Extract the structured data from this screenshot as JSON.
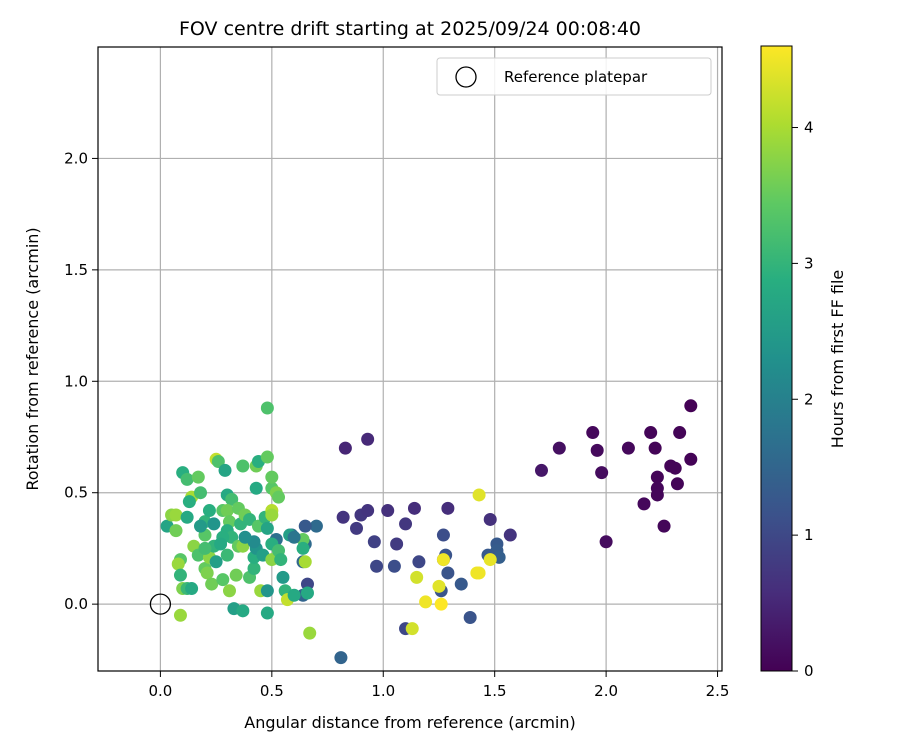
{
  "chart_data": {
    "type": "scatter",
    "title": "FOV centre drift starting at 2025/09/24 00:08:40",
    "xlabel": "Angular distance from reference (arcmin)",
    "ylabel": "Rotation from reference (arcmin)",
    "xlim": [
      -0.28,
      2.52
    ],
    "ylim": [
      -0.3,
      2.5
    ],
    "xticks": [
      0.0,
      0.5,
      1.0,
      1.5,
      2.0,
      2.5
    ],
    "xtick_labels": [
      "0.0",
      "0.5",
      "1.0",
      "1.5",
      "2.0",
      "2.5"
    ],
    "yticks": [
      0.0,
      0.5,
      1.0,
      1.5,
      2.0
    ],
    "ytick_labels": [
      "0.0",
      "0.5",
      "1.0",
      "1.5",
      "2.0"
    ],
    "grid": true,
    "legend": {
      "position": "top-right",
      "entries": [
        {
          "label": "Reference platepar",
          "marker": "open-circle"
        }
      ]
    },
    "reference": {
      "x": 0.0,
      "y": 0.0
    },
    "colorbar": {
      "label": "Hours from first FF file",
      "colormap": "viridis",
      "range": [
        0,
        4.6
      ],
      "ticks": [
        0,
        1,
        2,
        3,
        4
      ],
      "tick_labels": [
        "0",
        "1",
        "2",
        "3",
        "4"
      ]
    },
    "points": [
      {
        "x": 2.38,
        "y": 0.89,
        "t": 0.02
      },
      {
        "x": 2.33,
        "y": 0.77,
        "t": 0.05
      },
      {
        "x": 2.2,
        "y": 0.77,
        "t": 0.06
      },
      {
        "x": 1.94,
        "y": 0.77,
        "t": 0.1
      },
      {
        "x": 1.79,
        "y": 0.7,
        "t": 0.2
      },
      {
        "x": 1.71,
        "y": 0.6,
        "t": 0.3
      },
      {
        "x": 1.96,
        "y": 0.69,
        "t": 0.12
      },
      {
        "x": 1.98,
        "y": 0.59,
        "t": 0.15
      },
      {
        "x": 2.1,
        "y": 0.7,
        "t": 0.1
      },
      {
        "x": 2.22,
        "y": 0.7,
        "t": 0.05
      },
      {
        "x": 2.23,
        "y": 0.57,
        "t": 0.06
      },
      {
        "x": 2.23,
        "y": 0.52,
        "t": 0.07
      },
      {
        "x": 2.23,
        "y": 0.49,
        "t": 0.08
      },
      {
        "x": 2.17,
        "y": 0.45,
        "t": 0.1
      },
      {
        "x": 2.29,
        "y": 0.62,
        "t": 0.04
      },
      {
        "x": 2.31,
        "y": 0.61,
        "t": 0.05
      },
      {
        "x": 2.38,
        "y": 0.65,
        "t": 0.03
      },
      {
        "x": 2.32,
        "y": 0.54,
        "t": 0.05
      },
      {
        "x": 2.26,
        "y": 0.35,
        "t": 0.08
      },
      {
        "x": 2.0,
        "y": 0.28,
        "t": 0.15
      },
      {
        "x": 0.83,
        "y": 0.7,
        "t": 0.5
      },
      {
        "x": 0.93,
        "y": 0.74,
        "t": 0.55
      },
      {
        "x": 0.82,
        "y": 0.39,
        "t": 0.7
      },
      {
        "x": 0.88,
        "y": 0.34,
        "t": 0.8
      },
      {
        "x": 0.9,
        "y": 0.4,
        "t": 0.75
      },
      {
        "x": 0.93,
        "y": 0.42,
        "t": 0.7
      },
      {
        "x": 1.02,
        "y": 0.42,
        "t": 0.65
      },
      {
        "x": 1.14,
        "y": 0.43,
        "t": 0.6
      },
      {
        "x": 1.29,
        "y": 0.43,
        "t": 0.6
      },
      {
        "x": 1.48,
        "y": 0.38,
        "t": 0.65
      },
      {
        "x": 1.57,
        "y": 0.31,
        "t": 0.7
      },
      {
        "x": 1.1,
        "y": 0.36,
        "t": 0.75
      },
      {
        "x": 1.06,
        "y": 0.27,
        "t": 0.8
      },
      {
        "x": 0.96,
        "y": 0.28,
        "t": 0.9
      },
      {
        "x": 1.16,
        "y": 0.19,
        "t": 1.0
      },
      {
        "x": 1.27,
        "y": 0.31,
        "t": 1.1
      },
      {
        "x": 1.28,
        "y": 0.22,
        "t": 1.2
      },
      {
        "x": 1.27,
        "y": 0.2,
        "t": 1.15
      },
      {
        "x": 1.51,
        "y": 0.27,
        "t": 1.3
      },
      {
        "x": 1.51,
        "y": 0.24,
        "t": 1.35
      },
      {
        "x": 1.52,
        "y": 0.21,
        "t": 1.4
      },
      {
        "x": 1.47,
        "y": 0.22,
        "t": 1.3
      },
      {
        "x": 1.35,
        "y": 0.09,
        "t": 1.3
      },
      {
        "x": 1.29,
        "y": 0.14,
        "t": 1.2
      },
      {
        "x": 1.26,
        "y": 0.06,
        "t": 1.2
      },
      {
        "x": 1.05,
        "y": 0.17,
        "t": 1.1
      },
      {
        "x": 0.97,
        "y": 0.17,
        "t": 1.0
      },
      {
        "x": 1.1,
        "y": -0.11,
        "t": 1.0
      },
      {
        "x": 1.39,
        "y": -0.06,
        "t": 1.2
      },
      {
        "x": 0.81,
        "y": -0.24,
        "t": 1.5
      },
      {
        "x": 0.7,
        "y": 0.35,
        "t": 1.6
      },
      {
        "x": 0.65,
        "y": 0.35,
        "t": 1.3
      },
      {
        "x": 0.65,
        "y": 0.27,
        "t": 1.6
      },
      {
        "x": 0.59,
        "y": 0.31,
        "t": 1.65
      },
      {
        "x": 0.52,
        "y": 0.29,
        "t": 1.7
      },
      {
        "x": 0.66,
        "y": 0.09,
        "t": 1.0
      },
      {
        "x": 0.64,
        "y": 0.19,
        "t": 1.55
      },
      {
        "x": 0.64,
        "y": 0.04,
        "t": 1.5
      },
      {
        "x": 1.42,
        "y": 0.14,
        "t": 4.5
      },
      {
        "x": 1.43,
        "y": 0.49,
        "t": 4.4
      },
      {
        "x": 1.48,
        "y": 0.2,
        "t": 4.45
      },
      {
        "x": 1.43,
        "y": 0.14,
        "t": 4.5
      },
      {
        "x": 1.27,
        "y": 0.2,
        "t": 4.5
      },
      {
        "x": 1.15,
        "y": 0.12,
        "t": 4.3
      },
      {
        "x": 1.19,
        "y": 0.01,
        "t": 4.5
      },
      {
        "x": 1.25,
        "y": 0.08,
        "t": 4.4
      },
      {
        "x": 1.26,
        "y": 0.0,
        "t": 4.6
      },
      {
        "x": 1.13,
        "y": -0.11,
        "t": 4.3
      },
      {
        "x": 0.03,
        "y": 0.35,
        "t": 2.7
      },
      {
        "x": 0.05,
        "y": 0.4,
        "t": 3.8
      },
      {
        "x": 0.07,
        "y": 0.4,
        "t": 3.9
      },
      {
        "x": 0.07,
        "y": 0.33,
        "t": 3.6
      },
      {
        "x": 0.09,
        "y": 0.2,
        "t": 3.4
      },
      {
        "x": 0.08,
        "y": 0.18,
        "t": 3.9
      },
      {
        "x": 0.09,
        "y": 0.13,
        "t": 3.0
      },
      {
        "x": 0.09,
        "y": -0.05,
        "t": 3.9
      },
      {
        "x": 0.1,
        "y": 0.07,
        "t": 3.7
      },
      {
        "x": 0.12,
        "y": 0.07,
        "t": 3.1
      },
      {
        "x": 0.14,
        "y": 0.07,
        "t": 2.8
      },
      {
        "x": 0.1,
        "y": 0.59,
        "t": 2.9
      },
      {
        "x": 0.12,
        "y": 0.56,
        "t": 3.2
      },
      {
        "x": 0.17,
        "y": 0.57,
        "t": 3.5
      },
      {
        "x": 0.14,
        "y": 0.48,
        "t": 4.0
      },
      {
        "x": 0.13,
        "y": 0.46,
        "t": 2.9
      },
      {
        "x": 0.12,
        "y": 0.39,
        "t": 2.8
      },
      {
        "x": 0.18,
        "y": 0.5,
        "t": 3.2
      },
      {
        "x": 0.15,
        "y": 0.26,
        "t": 3.8
      },
      {
        "x": 0.17,
        "y": 0.22,
        "t": 3.3
      },
      {
        "x": 0.2,
        "y": 0.31,
        "t": 3.4
      },
      {
        "x": 0.2,
        "y": 0.37,
        "t": 3.0
      },
      {
        "x": 0.22,
        "y": 0.42,
        "t": 2.9
      },
      {
        "x": 0.2,
        "y": 0.16,
        "t": 3.5
      },
      {
        "x": 0.21,
        "y": 0.14,
        "t": 3.7
      },
      {
        "x": 0.23,
        "y": 0.09,
        "t": 3.6
      },
      {
        "x": 0.22,
        "y": 0.21,
        "t": 3.8
      },
      {
        "x": 0.24,
        "y": 0.26,
        "t": 3.0
      },
      {
        "x": 0.25,
        "y": 0.65,
        "t": 4.2
      },
      {
        "x": 0.26,
        "y": 0.64,
        "t": 3.3
      },
      {
        "x": 0.29,
        "y": 0.6,
        "t": 2.7
      },
      {
        "x": 0.3,
        "y": 0.49,
        "t": 2.8
      },
      {
        "x": 0.32,
        "y": 0.47,
        "t": 3.2
      },
      {
        "x": 0.28,
        "y": 0.42,
        "t": 3.4
      },
      {
        "x": 0.3,
        "y": 0.42,
        "t": 3.6
      },
      {
        "x": 0.31,
        "y": 0.37,
        "t": 3.5
      },
      {
        "x": 0.3,
        "y": 0.33,
        "t": 2.9
      },
      {
        "x": 0.32,
        "y": 0.3,
        "t": 3.0
      },
      {
        "x": 0.28,
        "y": 0.3,
        "t": 2.9
      },
      {
        "x": 0.27,
        "y": 0.27,
        "t": 2.8
      },
      {
        "x": 0.3,
        "y": 0.22,
        "t": 3.1
      },
      {
        "x": 0.28,
        "y": 0.11,
        "t": 3.4
      },
      {
        "x": 0.31,
        "y": 0.06,
        "t": 3.8
      },
      {
        "x": 0.33,
        "y": -0.02,
        "t": 2.6
      },
      {
        "x": 0.34,
        "y": 0.13,
        "t": 3.6
      },
      {
        "x": 0.35,
        "y": 0.43,
        "t": 3.5
      },
      {
        "x": 0.36,
        "y": 0.36,
        "t": 3.0
      },
      {
        "x": 0.35,
        "y": 0.26,
        "t": 3.5
      },
      {
        "x": 0.37,
        "y": 0.26,
        "t": 3.8
      },
      {
        "x": 0.37,
        "y": 0.62,
        "t": 3.3
      },
      {
        "x": 0.37,
        "y": -0.03,
        "t": 2.8
      },
      {
        "x": 0.38,
        "y": 0.4,
        "t": 3.6
      },
      {
        "x": 0.4,
        "y": 0.38,
        "t": 3.0
      },
      {
        "x": 0.4,
        "y": 0.12,
        "t": 3.3
      },
      {
        "x": 0.42,
        "y": 0.16,
        "t": 3.0
      },
      {
        "x": 0.42,
        "y": 0.21,
        "t": 2.9
      },
      {
        "x": 0.43,
        "y": 0.25,
        "t": 2.4
      },
      {
        "x": 0.43,
        "y": 0.62,
        "t": 3.6
      },
      {
        "x": 0.44,
        "y": 0.64,
        "t": 2.9
      },
      {
        "x": 0.43,
        "y": 0.52,
        "t": 2.8
      },
      {
        "x": 0.44,
        "y": 0.35,
        "t": 3.4
      },
      {
        "x": 0.45,
        "y": 0.06,
        "t": 3.9
      },
      {
        "x": 0.46,
        "y": 0.22,
        "t": 2.6
      },
      {
        "x": 0.47,
        "y": 0.39,
        "t": 3.0
      },
      {
        "x": 0.48,
        "y": 0.34,
        "t": 2.7
      },
      {
        "x": 0.48,
        "y": 0.66,
        "t": 3.5
      },
      {
        "x": 0.48,
        "y": 0.88,
        "t": 3.3
      },
      {
        "x": 0.48,
        "y": 0.06,
        "t": 2.4
      },
      {
        "x": 0.48,
        "y": -0.04,
        "t": 2.8
      },
      {
        "x": 0.5,
        "y": 0.52,
        "t": 3.4
      },
      {
        "x": 0.5,
        "y": 0.57,
        "t": 3.5
      },
      {
        "x": 0.5,
        "y": 0.42,
        "t": 4.1
      },
      {
        "x": 0.5,
        "y": 0.4,
        "t": 3.9
      },
      {
        "x": 0.5,
        "y": 0.2,
        "t": 3.8
      },
      {
        "x": 0.5,
        "y": 0.27,
        "t": 2.9
      },
      {
        "x": 0.52,
        "y": 0.5,
        "t": 3.7
      },
      {
        "x": 0.53,
        "y": 0.48,
        "t": 3.5
      },
      {
        "x": 0.53,
        "y": 0.24,
        "t": 3.2
      },
      {
        "x": 0.54,
        "y": 0.2,
        "t": 3.0
      },
      {
        "x": 0.55,
        "y": 0.12,
        "t": 2.5
      },
      {
        "x": 0.56,
        "y": 0.06,
        "t": 3.0
      },
      {
        "x": 0.57,
        "y": 0.02,
        "t": 4.2
      },
      {
        "x": 0.6,
        "y": 0.04,
        "t": 2.8
      },
      {
        "x": 0.64,
        "y": 0.29,
        "t": 3.5
      },
      {
        "x": 0.64,
        "y": 0.25,
        "t": 2.9
      },
      {
        "x": 0.65,
        "y": 0.19,
        "t": 4.0
      },
      {
        "x": 0.66,
        "y": 0.05,
        "t": 2.8
      },
      {
        "x": 0.67,
        "y": -0.13,
        "t": 3.9
      },
      {
        "x": 0.58,
        "y": 0.31,
        "t": 2.6
      },
      {
        "x": 0.42,
        "y": 0.28,
        "t": 2.2
      },
      {
        "x": 0.38,
        "y": 0.3,
        "t": 2.3
      },
      {
        "x": 0.25,
        "y": 0.19,
        "t": 2.6
      },
      {
        "x": 0.18,
        "y": 0.35,
        "t": 2.5
      },
      {
        "x": 0.6,
        "y": 0.3,
        "t": 1.8
      },
      {
        "x": 0.24,
        "y": 0.36,
        "t": 2.4
      },
      {
        "x": 0.2,
        "y": 0.25,
        "t": 3.2
      }
    ]
  }
}
